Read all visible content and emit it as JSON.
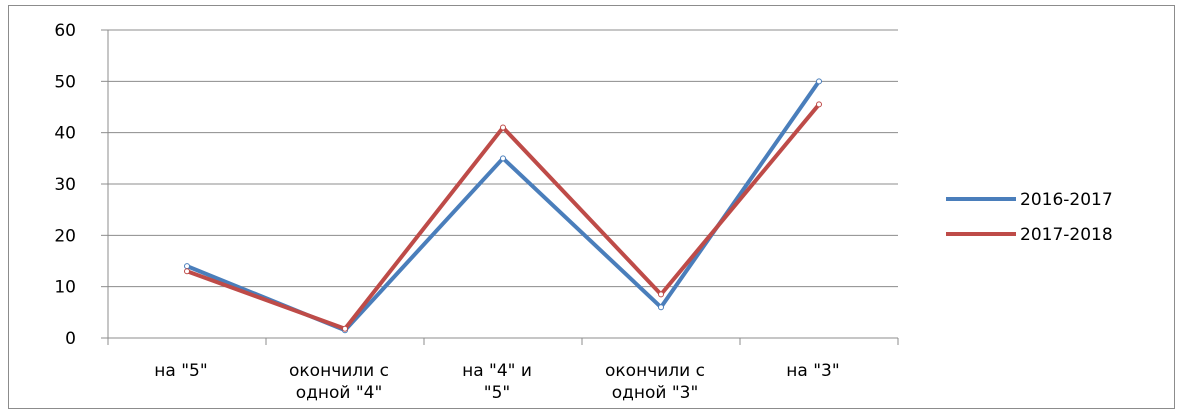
{
  "chart_data": {
    "type": "line",
    "title": "",
    "xlabel": "",
    "ylabel": "",
    "ylim": [
      0,
      60
    ],
    "yticks": [
      "0",
      "10",
      "20",
      "30",
      "40",
      "50",
      "60"
    ],
    "categories": [
      [
        "на \"5\""
      ],
      [
        "окончили с",
        "одной \"4\""
      ],
      [
        "на \"4\" и",
        "\"5\""
      ],
      [
        "окончили с",
        "одной \"3\""
      ],
      [
        "на \"3\""
      ]
    ],
    "series": [
      {
        "name": "2016-2017",
        "color": "#4a7ebb",
        "values": [
          14,
          1.5,
          35,
          6,
          50
        ]
      },
      {
        "name": "2017-2018",
        "color": "#be4b48",
        "values": [
          13,
          1.8,
          41,
          8.5,
          45.5
        ]
      }
    ],
    "grid": true,
    "legend": "right"
  }
}
